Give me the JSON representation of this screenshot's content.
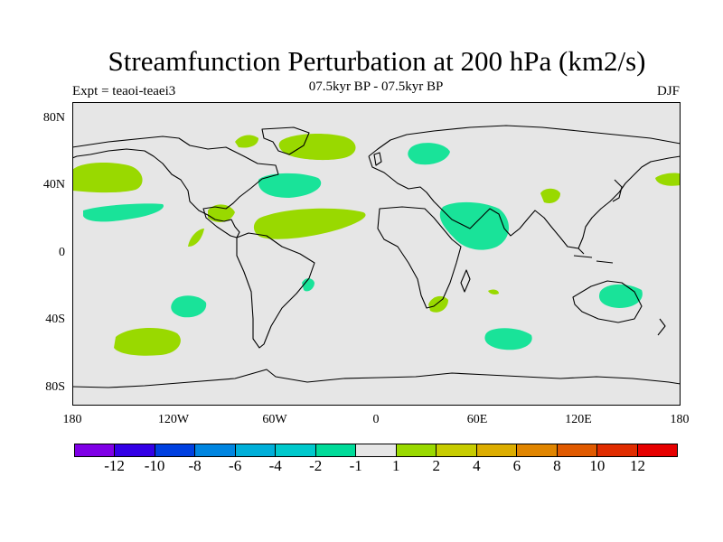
{
  "title": "Streamfunction Perturbation at 200 hPa (km2/s)",
  "left_label": "Expt = teaoi-teaei3",
  "center_label": "07.5kyr BP - 07.5kyr BP",
  "right_label": "DJF",
  "lat_labels": [
    "80N",
    "40N",
    "0",
    "40S",
    "80S"
  ],
  "lon_labels": [
    "180",
    "120W",
    "60W",
    "0",
    "60E",
    "120E",
    "180"
  ],
  "colors": {
    "ocean": "#e6e6e6",
    "positive_fill": "#99d900",
    "negative_fill": "#19e399",
    "coast": "#000000"
  },
  "colorbar": {
    "colors": [
      "#7f00e6",
      "#3300e6",
      "#0040e0",
      "#0085e0",
      "#00afd9",
      "#00c9cc",
      "#00db99",
      "#e6e6e6",
      "#99d900",
      "#c7cc00",
      "#dcad00",
      "#e08500",
      "#e05a00",
      "#e02c00",
      "#e60000"
    ],
    "labels": [
      "-12",
      "-10",
      "-8",
      "-6",
      "-4",
      "-2",
      "-1",
      "1",
      "2",
      "4",
      "6",
      "8",
      "10",
      "12"
    ]
  }
}
